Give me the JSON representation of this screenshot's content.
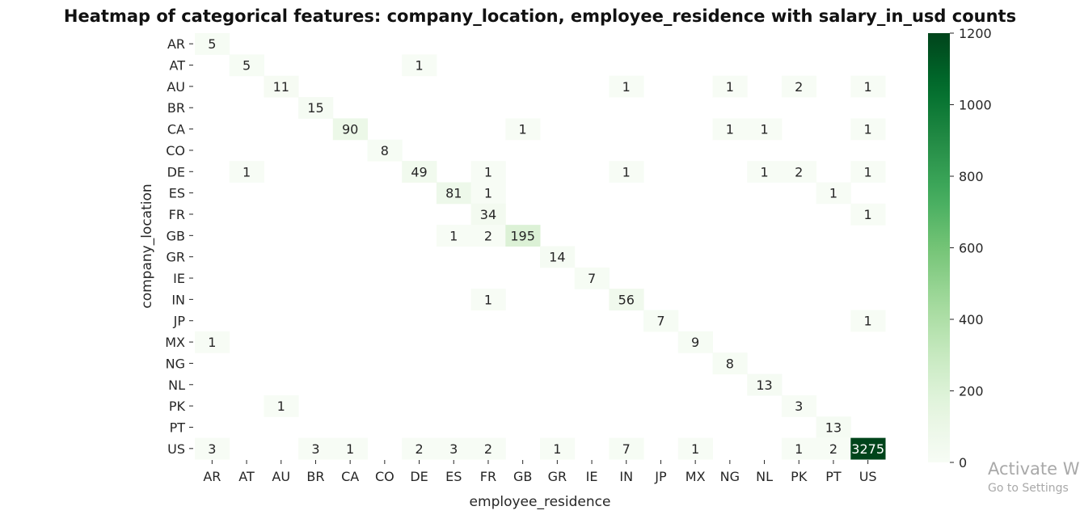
{
  "chart_data": {
    "type": "heatmap",
    "title": "Heatmap of categorical features: company_location, employee_residence with salary_in_usd counts",
    "xlabel": "employee_residence",
    "ylabel": "company_location",
    "x_categories": [
      "AR",
      "AT",
      "AU",
      "BR",
      "CA",
      "CO",
      "DE",
      "ES",
      "FR",
      "GB",
      "GR",
      "IE",
      "IN",
      "JP",
      "MX",
      "NG",
      "NL",
      "PK",
      "PT",
      "US"
    ],
    "y_categories": [
      "AR",
      "AT",
      "AU",
      "BR",
      "CA",
      "CO",
      "DE",
      "ES",
      "FR",
      "GB",
      "GR",
      "IE",
      "IN",
      "JP",
      "MX",
      "NG",
      "NL",
      "PK",
      "PT",
      "US"
    ],
    "values": [
      [
        5,
        null,
        null,
        null,
        null,
        null,
        null,
        null,
        null,
        null,
        null,
        null,
        null,
        null,
        null,
        null,
        null,
        null,
        null,
        null
      ],
      [
        null,
        5,
        null,
        null,
        null,
        null,
        1,
        null,
        null,
        null,
        null,
        null,
        null,
        null,
        null,
        null,
        null,
        null,
        null,
        null
      ],
      [
        null,
        null,
        11,
        null,
        null,
        null,
        null,
        null,
        null,
        null,
        null,
        null,
        1,
        null,
        null,
        1,
        null,
        2,
        null,
        1
      ],
      [
        null,
        null,
        null,
        15,
        null,
        null,
        null,
        null,
        null,
        null,
        null,
        null,
        null,
        null,
        null,
        null,
        null,
        null,
        null,
        null
      ],
      [
        null,
        null,
        null,
        null,
        90,
        null,
        null,
        null,
        null,
        1,
        null,
        null,
        null,
        null,
        null,
        1,
        1,
        null,
        null,
        1
      ],
      [
        null,
        null,
        null,
        null,
        null,
        8,
        null,
        null,
        null,
        null,
        null,
        null,
        null,
        null,
        null,
        null,
        null,
        null,
        null,
        null
      ],
      [
        null,
        1,
        null,
        null,
        null,
        null,
        49,
        null,
        1,
        null,
        null,
        null,
        1,
        null,
        null,
        null,
        1,
        2,
        null,
        1
      ],
      [
        null,
        null,
        null,
        null,
        null,
        null,
        null,
        81,
        1,
        null,
        null,
        null,
        null,
        null,
        null,
        null,
        null,
        null,
        1,
        null
      ],
      [
        null,
        null,
        null,
        null,
        null,
        null,
        null,
        null,
        34,
        null,
        null,
        null,
        null,
        null,
        null,
        null,
        null,
        null,
        null,
        1
      ],
      [
        null,
        null,
        null,
        null,
        null,
        null,
        null,
        1,
        2,
        195,
        null,
        null,
        null,
        null,
        null,
        null,
        null,
        null,
        null,
        null
      ],
      [
        null,
        null,
        null,
        null,
        null,
        null,
        null,
        null,
        null,
        null,
        14,
        null,
        null,
        null,
        null,
        null,
        null,
        null,
        null,
        null
      ],
      [
        null,
        null,
        null,
        null,
        null,
        null,
        null,
        null,
        null,
        null,
        null,
        7,
        null,
        null,
        null,
        null,
        null,
        null,
        null,
        null
      ],
      [
        null,
        null,
        null,
        null,
        null,
        null,
        null,
        null,
        1,
        null,
        null,
        null,
        56,
        null,
        null,
        null,
        null,
        null,
        null,
        null
      ],
      [
        null,
        null,
        null,
        null,
        null,
        null,
        null,
        null,
        null,
        null,
        null,
        null,
        null,
        7,
        null,
        null,
        null,
        null,
        null,
        1
      ],
      [
        1,
        null,
        null,
        null,
        null,
        null,
        null,
        null,
        null,
        null,
        null,
        null,
        null,
        null,
        9,
        null,
        null,
        null,
        null,
        null
      ],
      [
        null,
        null,
        null,
        null,
        null,
        null,
        null,
        null,
        null,
        null,
        null,
        null,
        null,
        null,
        null,
        8,
        null,
        null,
        null,
        null
      ],
      [
        null,
        null,
        null,
        null,
        null,
        null,
        null,
        null,
        null,
        null,
        null,
        null,
        null,
        null,
        null,
        null,
        13,
        null,
        null,
        null
      ],
      [
        null,
        null,
        1,
        null,
        null,
        null,
        null,
        null,
        null,
        null,
        null,
        null,
        null,
        null,
        null,
        null,
        null,
        3,
        null,
        null
      ],
      [
        null,
        null,
        null,
        null,
        null,
        null,
        null,
        null,
        null,
        null,
        null,
        null,
        null,
        null,
        null,
        null,
        null,
        null,
        13,
        null
      ],
      [
        3,
        null,
        null,
        3,
        1,
        null,
        2,
        3,
        2,
        null,
        1,
        null,
        7,
        null,
        1,
        null,
        null,
        1,
        2,
        3275
      ]
    ],
    "colorbar": {
      "ticks": [
        0,
        200,
        400,
        600,
        800,
        1000,
        1200
      ],
      "vmin": 0,
      "vmax": 1200,
      "colormap": "Greens",
      "color_low": "#f7fcf5",
      "color_high": "#00441b"
    },
    "grid": false,
    "legend": "colorbar-right"
  },
  "watermark": {
    "title": "Activate W",
    "subtitle": "Go to Settings"
  }
}
